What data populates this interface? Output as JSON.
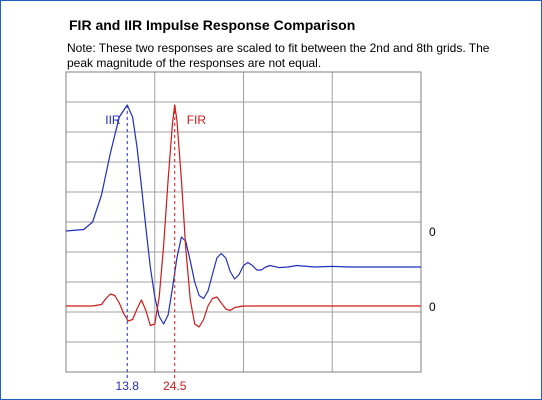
{
  "chart_data": {
    "type": "line",
    "title": "FIR and IIR Impulse Response Comparison",
    "note": "Note: These two responses are scaled to fit between the 2nd and 8th grids. The peak magnitude of the responses are not equal.",
    "xlabel": "",
    "ylabel": "",
    "xlim": [
      0,
      80
    ],
    "ylim": [
      0,
      10
    ],
    "grid": true,
    "grid_divisions": {
      "x": 4,
      "y": 10
    },
    "series": [
      {
        "name": "IIR",
        "color": "#1f2fbf",
        "baseline": 4.7,
        "peak_x": 13.8,
        "points": [
          [
            0,
            4.7
          ],
          [
            4,
            4.75
          ],
          [
            6,
            5.0
          ],
          [
            8,
            5.9
          ],
          [
            10,
            7.3
          ],
          [
            12,
            8.5
          ],
          [
            13.8,
            8.9
          ],
          [
            15,
            8.5
          ],
          [
            16,
            7.5
          ],
          [
            17,
            6.2
          ],
          [
            18,
            4.8
          ],
          [
            19,
            3.5
          ],
          [
            20,
            2.5
          ],
          [
            21,
            1.85
          ],
          [
            22,
            1.6
          ],
          [
            23,
            1.9
          ],
          [
            24,
            2.8
          ],
          [
            25,
            3.8
          ],
          [
            26,
            4.5
          ],
          [
            27,
            4.35
          ],
          [
            28,
            3.7
          ],
          [
            29,
            3.0
          ],
          [
            30,
            2.55
          ],
          [
            31,
            2.45
          ],
          [
            32,
            2.7
          ],
          [
            33,
            3.25
          ],
          [
            34,
            3.8
          ],
          [
            35,
            3.95
          ],
          [
            36,
            3.8
          ],
          [
            37,
            3.35
          ],
          [
            38,
            3.1
          ],
          [
            39,
            3.25
          ],
          [
            40,
            3.55
          ],
          [
            41,
            3.65
          ],
          [
            42,
            3.55
          ],
          [
            43,
            3.4
          ],
          [
            44,
            3.4
          ],
          [
            45,
            3.5
          ],
          [
            46,
            3.55
          ],
          [
            48,
            3.48
          ],
          [
            50,
            3.5
          ],
          [
            52,
            3.55
          ],
          [
            56,
            3.5
          ],
          [
            60,
            3.52
          ],
          [
            64,
            3.5
          ],
          [
            70,
            3.5
          ],
          [
            80,
            3.5
          ]
        ],
        "zero_label": "0",
        "marker_label": "13.8"
      },
      {
        "name": "FIR",
        "color": "#d01818",
        "baseline": 2.2,
        "peak_x": 24.5,
        "points": [
          [
            0,
            2.2
          ],
          [
            6,
            2.2
          ],
          [
            8,
            2.25
          ],
          [
            9,
            2.45
          ],
          [
            10,
            2.6
          ],
          [
            11,
            2.55
          ],
          [
            12,
            2.3
          ],
          [
            13,
            1.95
          ],
          [
            14,
            1.7
          ],
          [
            15,
            1.75
          ],
          [
            16,
            2.1
          ],
          [
            17,
            2.4
          ],
          [
            18,
            2.05
          ],
          [
            19,
            1.55
          ],
          [
            20,
            1.6
          ],
          [
            21,
            2.5
          ],
          [
            22,
            4.2
          ],
          [
            23,
            6.4
          ],
          [
            24,
            8.3
          ],
          [
            24.5,
            8.9
          ],
          [
            25,
            8.4
          ],
          [
            26,
            6.4
          ],
          [
            27,
            4.1
          ],
          [
            28,
            2.4
          ],
          [
            29,
            1.6
          ],
          [
            30,
            1.5
          ],
          [
            31,
            1.75
          ],
          [
            32,
            2.2
          ],
          [
            33,
            2.45
          ],
          [
            34,
            2.5
          ],
          [
            35,
            2.3
          ],
          [
            36,
            2.1
          ],
          [
            37,
            2.05
          ],
          [
            38,
            2.15
          ],
          [
            40,
            2.2
          ],
          [
            80,
            2.2
          ]
        ],
        "zero_label": "0",
        "marker_label": "24.5"
      }
    ]
  }
}
